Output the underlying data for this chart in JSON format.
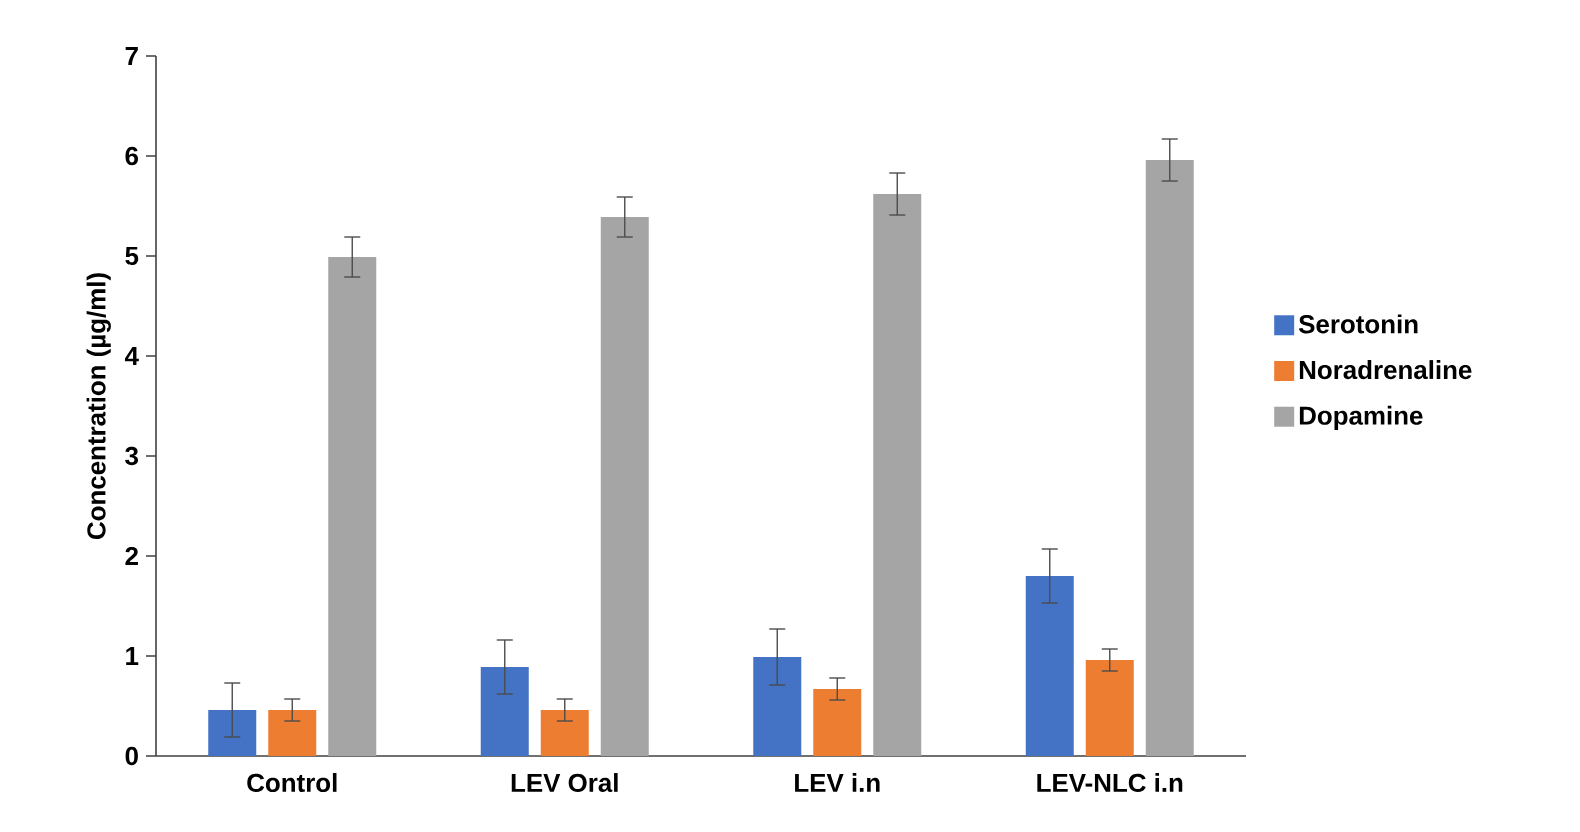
{
  "chart_data": {
    "type": "bar",
    "ylabel": "Concentration (µg/ml)",
    "categories": [
      "Control",
      "LEV Oral",
      "LEV i.n",
      "LEV-NLC i.n"
    ],
    "series": [
      {
        "name": "Serotonin",
        "color": "#4472c4",
        "values": [
          0.46,
          0.89,
          0.99,
          1.8
        ],
        "errors": [
          0.27,
          0.27,
          0.28,
          0.27
        ]
      },
      {
        "name": "Noradrenaline",
        "color": "#ed7d31",
        "values": [
          0.46,
          0.46,
          0.67,
          0.96
        ],
        "errors": [
          0.11,
          0.11,
          0.11,
          0.11
        ]
      },
      {
        "name": "Dopamine",
        "color": "#a5a5a5",
        "values": [
          4.99,
          5.39,
          5.62,
          5.96
        ],
        "errors": [
          0.2,
          0.2,
          0.21,
          0.21
        ]
      }
    ],
    "ylim": [
      0,
      7
    ],
    "yticks": [
      0,
      1,
      2,
      3,
      4,
      5,
      6,
      7
    ],
    "grid": false,
    "legend": "right"
  }
}
